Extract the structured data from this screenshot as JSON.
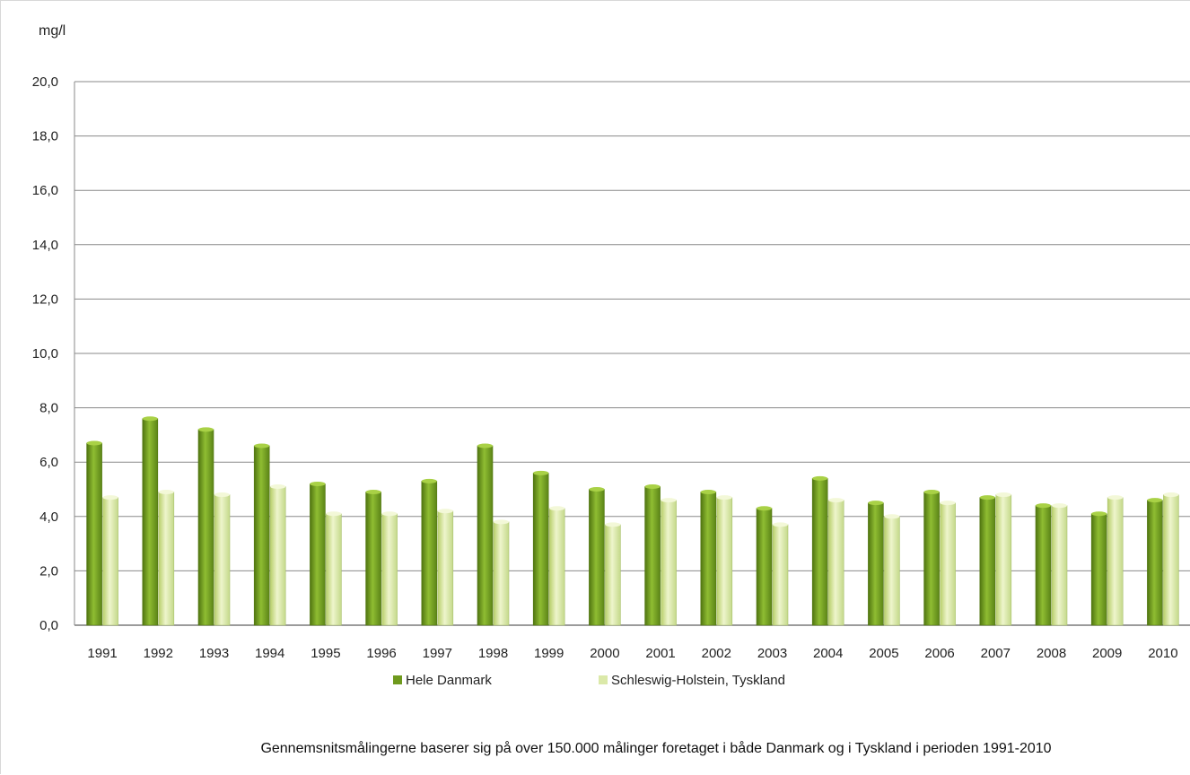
{
  "chart_data": {
    "type": "bar",
    "ylabel": "mg/l",
    "ylim": [
      0,
      20
    ],
    "yticks": [
      "0,0",
      "2,0",
      "4,0",
      "6,0",
      "8,0",
      "10,0",
      "12,0",
      "14,0",
      "16,0",
      "18,0",
      "20,0"
    ],
    "categories": [
      "1991",
      "1992",
      "1993",
      "1994",
      "1995",
      "1996",
      "1997",
      "1998",
      "1999",
      "2000",
      "2001",
      "2002",
      "2003",
      "2004",
      "2005",
      "2006",
      "2007",
      "2008",
      "2009",
      "2010"
    ],
    "series": [
      {
        "name": "Hele Danmark",
        "color": "#6f9a1e",
        "values": [
          6.7,
          7.6,
          7.2,
          6.6,
          5.2,
          4.9,
          5.3,
          6.6,
          5.6,
          5.0,
          5.1,
          4.9,
          4.3,
          5.4,
          4.5,
          4.9,
          4.7,
          4.4,
          4.1,
          4.6
        ]
      },
      {
        "name": "Schleswig-Holstein, Tyskland",
        "color": "#dbe9a9",
        "values": [
          4.7,
          4.9,
          4.8,
          5.1,
          4.1,
          4.1,
          4.2,
          3.8,
          4.3,
          3.7,
          4.6,
          4.7,
          3.7,
          4.6,
          4.0,
          4.5,
          4.8,
          4.4,
          4.7,
          4.8
        ]
      }
    ],
    "grid": true,
    "legend": "bottom",
    "footnote": "Gennemsnitsmålingerne baserer sig på over 150.000 målinger foretaget i både Danmark og i Tyskland i perioden 1991-2010"
  }
}
